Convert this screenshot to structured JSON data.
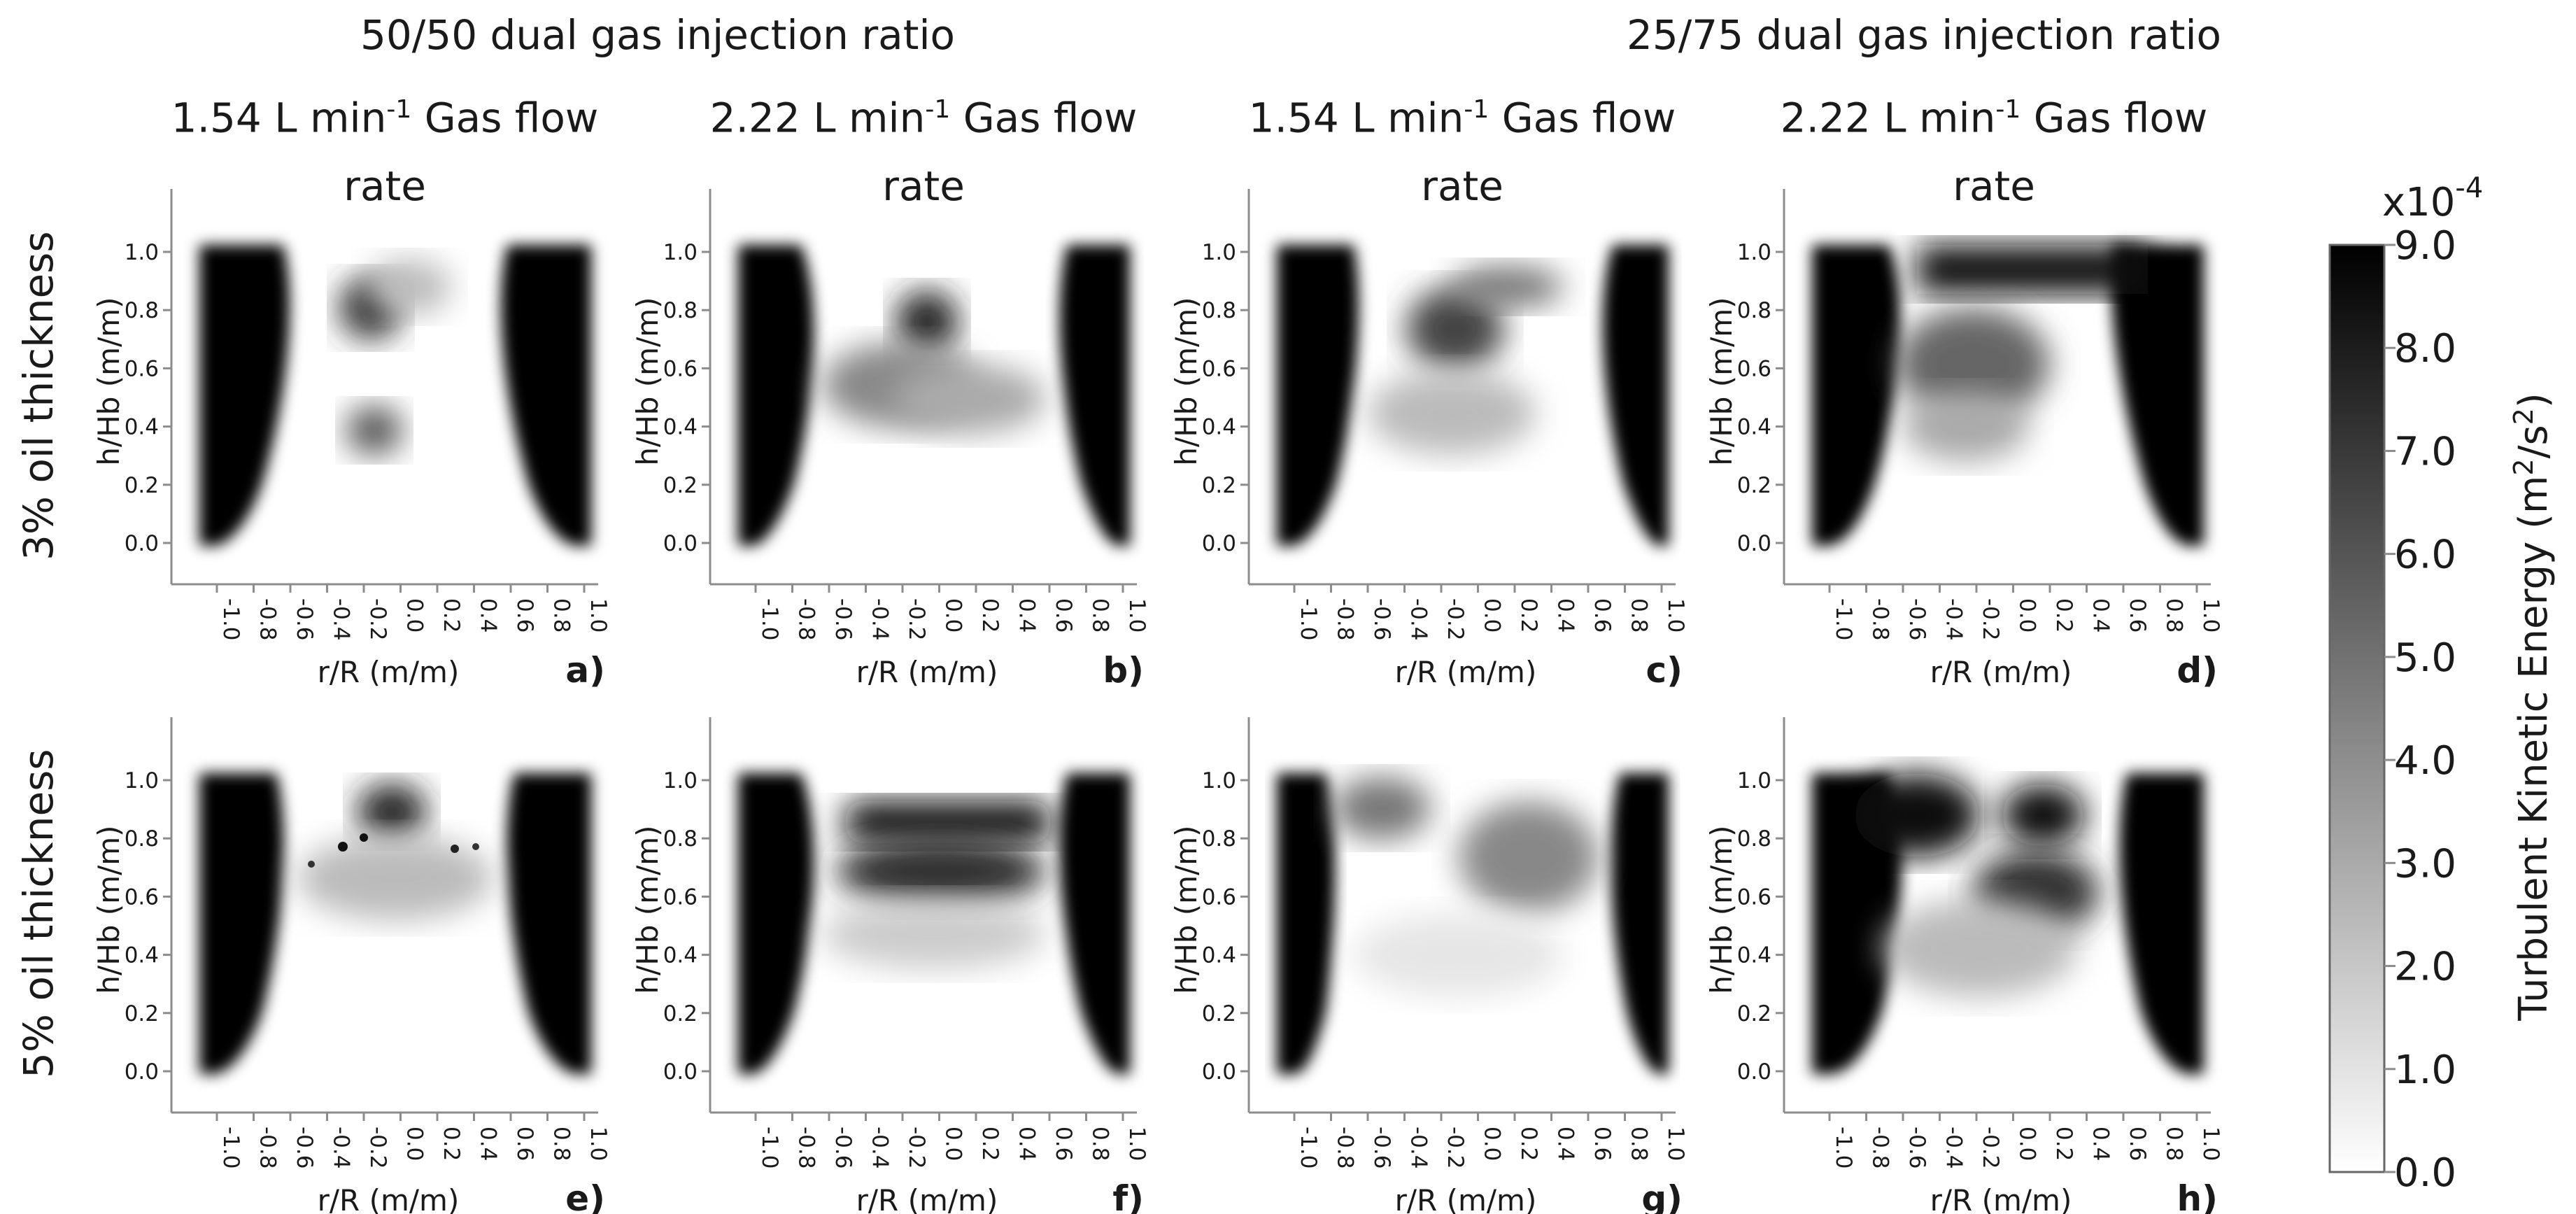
{
  "group_titles": [
    "50/50 dual gas injection ratio",
    "25/75 dual gas injection ratio"
  ],
  "column_titles": [
    {
      "value": "1.54",
      "unit_pre": "L min",
      "exp": "-1",
      "suffix": "Gas flow",
      "line2": "rate"
    },
    {
      "value": "2.22",
      "unit_pre": "L min",
      "exp": "-1",
      "suffix": "Gas flow",
      "line2": "rate"
    },
    {
      "value": "1.54",
      "unit_pre": "L min",
      "exp": "-1",
      "suffix": "Gas flow",
      "line2": "rate"
    },
    {
      "value": "2.22",
      "unit_pre": "L min",
      "exp": "-1",
      "suffix": "Gas flow",
      "line2": "rate"
    }
  ],
  "row_titles": [
    "3% oil thickness",
    "5% oil thickness"
  ],
  "colors": {
    "high": "#000000",
    "low": "#ffffff",
    "axis": "#8c8c8c"
  },
  "colorbar": {
    "multiplier_base": "x10",
    "multiplier_exp": "-4",
    "label_main": "Turbulent Kinetic Energy (m",
    "label_sup": "2",
    "label_mid": "/s",
    "label_sup2": "2",
    "label_end": ")",
    "range": [
      0.0,
      9.0
    ],
    "ticks": [
      "0.0",
      "1.0",
      "2.0",
      "3.0",
      "4.0",
      "5.0",
      "6.0",
      "7.0",
      "8.0",
      "9.0"
    ]
  },
  "chart_data": [
    {
      "type": "heatmap",
      "panel": "a)",
      "xlabel": "r/R (m/m)",
      "ylabel": "h/Hb (m/m)",
      "xlim": [
        -1.0,
        1.0
      ],
      "ylim": [
        0.0,
        1.0
      ],
      "oil_thickness": "3%",
      "injection_ratio": "50/50",
      "gas_flow": "1.54"
    },
    {
      "type": "heatmap",
      "panel": "b)",
      "xlabel": "r/R (m/m)",
      "ylabel": "h/Hb (m/m)",
      "xlim": [
        -1.0,
        1.0
      ],
      "ylim": [
        0.0,
        1.0
      ],
      "oil_thickness": "3%",
      "injection_ratio": "50/50",
      "gas_flow": "2.22"
    },
    {
      "type": "heatmap",
      "panel": "c)",
      "xlabel": "r/R (m/m)",
      "ylabel": "h/Hb (m/m)",
      "xlim": [
        -1.0,
        1.0
      ],
      "ylim": [
        0.0,
        1.0
      ],
      "oil_thickness": "3%",
      "injection_ratio": "25/75",
      "gas_flow": "1.54"
    },
    {
      "type": "heatmap",
      "panel": "d)",
      "xlabel": "r/R (m/m)",
      "ylabel": "h/Hb (m/m)",
      "xlim": [
        -1.0,
        1.0
      ],
      "ylim": [
        0.0,
        1.0
      ],
      "oil_thickness": "3%",
      "injection_ratio": "25/75",
      "gas_flow": "2.22"
    },
    {
      "type": "heatmap",
      "panel": "e)",
      "xlabel": "r/R (m/m)",
      "ylabel": "h/Hb (m/m)",
      "xlim": [
        -1.0,
        1.0
      ],
      "ylim": [
        0.0,
        1.0
      ],
      "oil_thickness": "5%",
      "injection_ratio": "50/50",
      "gas_flow": "1.54"
    },
    {
      "type": "heatmap",
      "panel": "f)",
      "xlabel": "r/R (m/m)",
      "ylabel": "h/Hb (m/m)",
      "xlim": [
        -1.0,
        1.0
      ],
      "ylim": [
        0.0,
        1.0
      ],
      "oil_thickness": "5%",
      "injection_ratio": "50/50",
      "gas_flow": "2.22"
    },
    {
      "type": "heatmap",
      "panel": "g)",
      "xlabel": "r/R (m/m)",
      "ylabel": "h/Hb (m/m)",
      "xlim": [
        -1.0,
        1.0
      ],
      "ylim": [
        0.0,
        1.0
      ],
      "oil_thickness": "5%",
      "injection_ratio": "25/75",
      "gas_flow": "1.54"
    },
    {
      "type": "heatmap",
      "panel": "h)",
      "xlabel": "r/R (m/m)",
      "ylabel": "h/Hb (m/m)",
      "xlim": [
        -1.0,
        1.0
      ],
      "ylim": [
        0.0,
        1.0
      ],
      "oil_thickness": "5%",
      "injection_ratio": "25/75",
      "gas_flow": "2.22"
    }
  ],
  "x_ticks": [
    "-1.0",
    "-0.8",
    "-0.6",
    "-0.4",
    "-0.2",
    "0.0",
    "0.2",
    "0.4",
    "0.6",
    "0.8",
    "1.0"
  ],
  "y_ticks": [
    "0.0",
    "0.2",
    "0.4",
    "0.6",
    "0.8",
    "1.0"
  ]
}
